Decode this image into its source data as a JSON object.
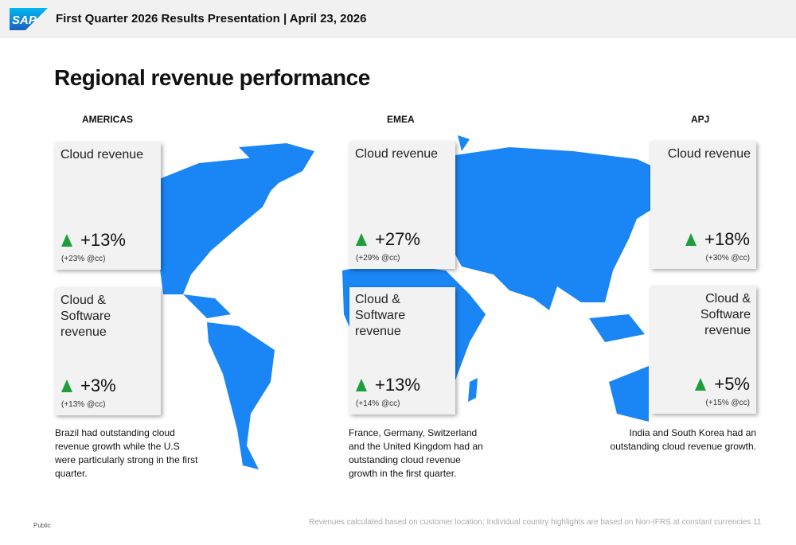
{
  "header": {
    "logo": "SAP",
    "title": "First Quarter 2026 Results Presentation | April 23, 2026"
  },
  "slide": {
    "title": "Regional revenue performance",
    "regions": [
      {
        "name": "AMERICAS",
        "cards": [
          {
            "label": "Cloud revenue",
            "change": "+13%",
            "cc": "(+23% @cc)"
          },
          {
            "label": "Cloud & Software revenue",
            "change": "+3%",
            "cc": "(+13% @cc)"
          }
        ],
        "note": "Brazil had outstanding  cloud revenue growth while the U.S were particularly strong in the first quarter."
      },
      {
        "name": "EMEA",
        "cards": [
          {
            "label": "Cloud revenue",
            "change": "+27%",
            "cc": "(+29% @cc)"
          },
          {
            "label": "Cloud & Software revenue",
            "change": "+13%",
            "cc": "(+14% @cc)"
          }
        ],
        "note": "France, Germany, Switzerland and the United Kingdom had an outstanding cloud revenue growth in the first quarter."
      },
      {
        "name": "APJ",
        "cards": [
          {
            "label": "Cloud revenue",
            "change": "+18%",
            "cc": "(+30% @cc)"
          },
          {
            "label": "Cloud & Software revenue",
            "change": "+5%",
            "cc": "(+15% @cc)"
          }
        ],
        "note": "India and South Korea had an outstanding cloud revenue growth."
      }
    ]
  },
  "footer": {
    "classification": "Public",
    "disclaimer": "Revenues calculated based on customer location; Individual country highlights are based on Non-IFRS at constant currencies",
    "page": "11"
  }
}
